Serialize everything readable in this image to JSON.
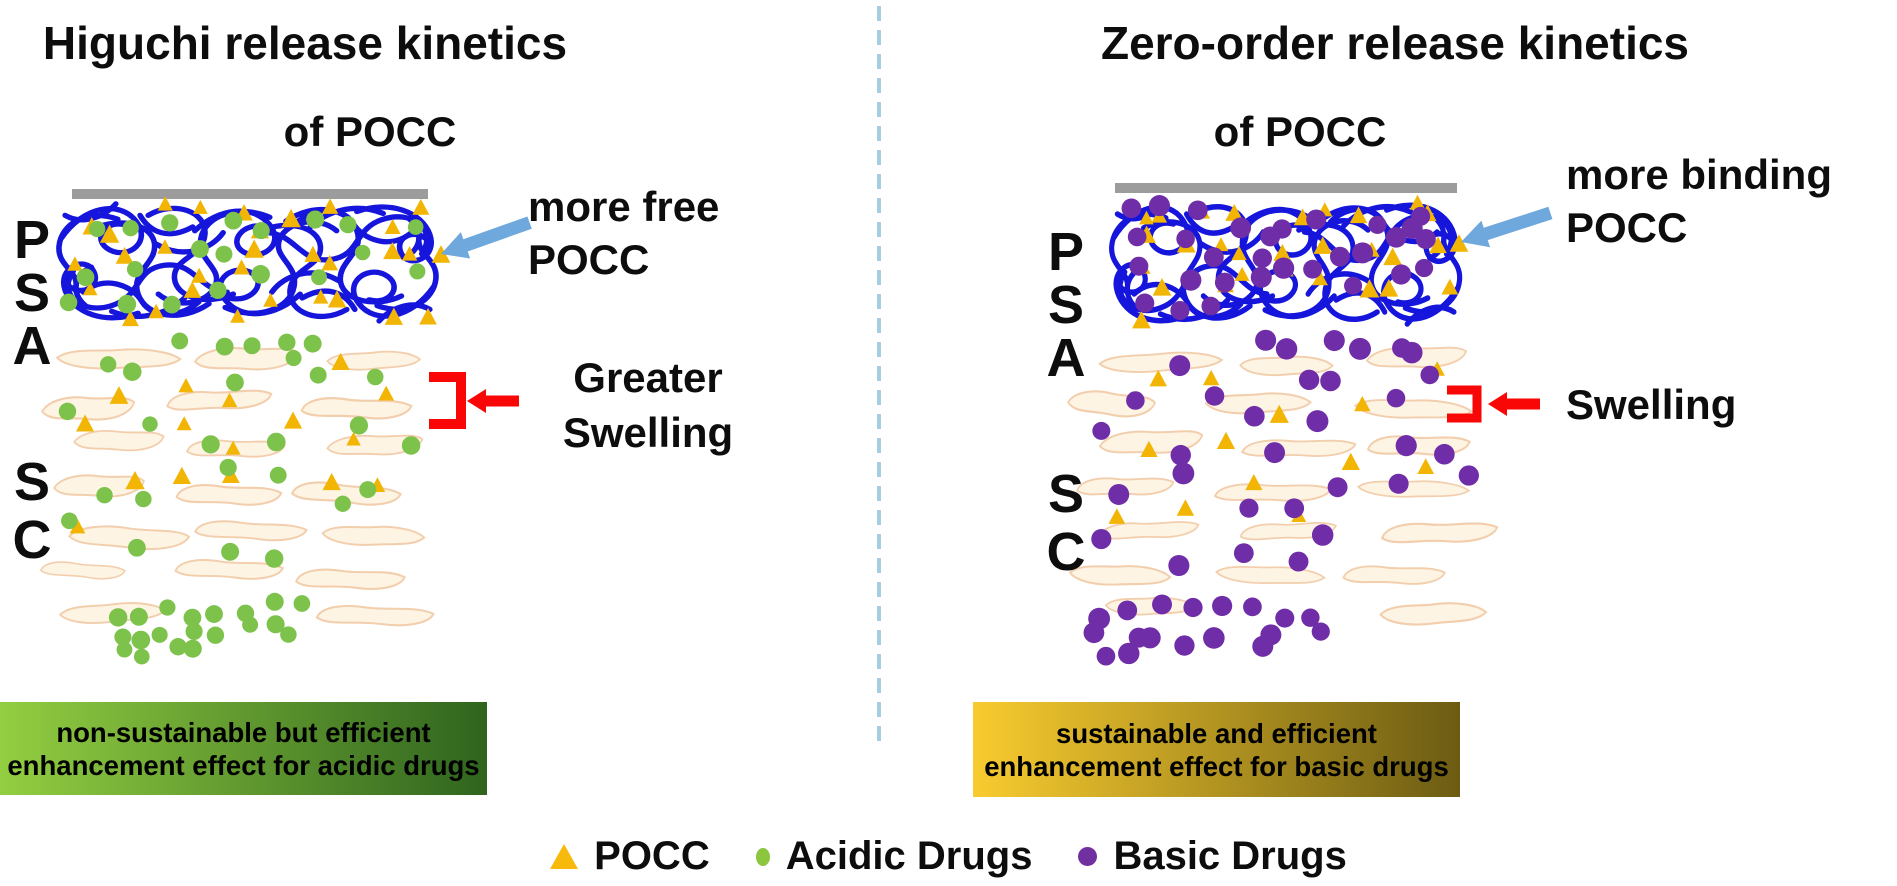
{
  "figure": {
    "left_panel": {
      "title_line1": "Higuchi release kinetics",
      "title_line2": "of POCC",
      "skin_layer_top": {
        "letters": [
          "P",
          "S",
          "A"
        ]
      },
      "skin_layer_bottom": {
        "letters": [
          "S",
          "C"
        ]
      },
      "arrow_annotation": {
        "line1": "more free",
        "line2": "POCC"
      },
      "swelling_annotation": {
        "line1": "Greater",
        "line2": "Swelling"
      },
      "banner": {
        "line1": "non-sustainable but efficient",
        "line2": "enhancement effect for acidic drugs",
        "gradient_from": "#93CE41",
        "gradient_to": "#2F641E"
      }
    },
    "right_panel": {
      "title_line1": "Zero-order release kinetics",
      "title_line2": "of POCC",
      "skin_layer_top": {
        "letters": [
          "P",
          "S",
          "A"
        ]
      },
      "skin_layer_bottom": {
        "letters": [
          "S",
          "C"
        ]
      },
      "arrow_annotation": {
        "line1": "more binding",
        "line2": "POCC"
      },
      "swelling_annotation": {
        "text": "Swelling"
      },
      "banner": {
        "line1": "sustainable and efficient",
        "line2": "enhancement effect for basic drugs",
        "gradient_from": "#F8CB2F",
        "gradient_to": "#6C5C13"
      }
    },
    "legend": {
      "items": [
        {
          "icon": "triangle",
          "label": "POCC",
          "color": "#F7B90B"
        },
        {
          "icon": "dot",
          "label": "Acidic Drugs",
          "color": "#8CC63F"
        },
        {
          "icon": "dot",
          "label": "Basic Drugs",
          "color": "#7030A0"
        }
      ]
    },
    "colors": {
      "polymer_network": "#1515DB",
      "pocc_triangle": "#F2B504",
      "acidic_drug": "#7DC24B",
      "basic_drug": "#6F2DA8",
      "corneocyte_fill": "#FDF4E4",
      "corneocyte_outline": "#F2CEAD",
      "skin_surface_bar": "#9C9C9C",
      "annotation_arrow_blue": "#6FA8DC",
      "swelling_red": "#F90606",
      "divider_dashed": "#A6CEE3",
      "text": "#0d0d0d"
    }
  }
}
